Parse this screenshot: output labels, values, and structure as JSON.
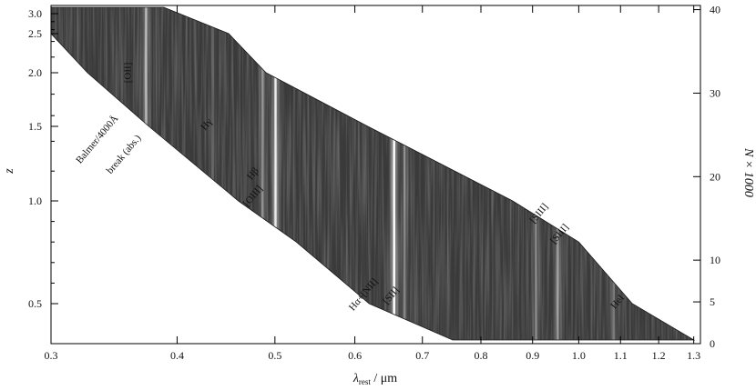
{
  "chart_data": {
    "type": "heatmap",
    "xlabel_main": "λ",
    "xlabel_sub": "rest",
    "xlabel_unit": " / μm",
    "ylabel_left": "z",
    "ylabel_right": "N × 1000",
    "x_scale": "log",
    "xlim": [
      0.3,
      1.32
    ],
    "x_ticks": [
      0.3,
      0.4,
      0.5,
      0.6,
      0.7,
      0.8,
      0.9,
      1.0,
      1.1,
      1.2,
      1.3
    ],
    "x_tick_labels": [
      "0.3",
      "0.4",
      "0.5",
      "0.6",
      "0.7",
      "0.8",
      "0.9",
      "1.0",
      "1.1",
      "1.2",
      "1.3"
    ],
    "z_ticks": [
      0.5,
      1.0,
      1.5,
      2.0,
      2.5,
      3.0
    ],
    "z_tick_labels": [
      "0.5",
      "1.0",
      "1.5",
      "2.0",
      "2.5",
      "3.0"
    ],
    "N_ticks": [
      0,
      5,
      10,
      20,
      30,
      40
    ],
    "N_tick_labels": [
      "0",
      "5",
      "10",
      "20",
      "30",
      "40"
    ],
    "N_range": [
      0,
      40.5
    ],
    "boundary": {
      "z": [
        3.05,
        2.5,
        2.0,
        1.5,
        1.0,
        0.8,
        0.5,
        0.4
      ],
      "lambda_min": [
        0.3,
        0.3,
        0.326,
        0.375,
        0.46,
        0.525,
        0.62,
        0.75
      ],
      "lambda_max": [
        0.388,
        0.45,
        0.49,
        0.618,
        0.86,
        1.0,
        1.13,
        1.3
      ]
    },
    "emission_lines": [
      {
        "label": "[OII]",
        "lambda": 0.3727,
        "strength": 0.55
      },
      {
        "label": "Hγ",
        "lambda": 0.434,
        "strength": 0.12
      },
      {
        "label": "Hβ",
        "lambda": 0.4861,
        "strength": 0.35
      },
      {
        "label": "[OIII]",
        "lambda": 0.5007,
        "strength": 0.85
      },
      {
        "label": "Hα+[NII]",
        "lambda": 0.6563,
        "strength": 1.0
      },
      {
        "label": "[SII]",
        "lambda": 0.672,
        "strength": 0.3
      },
      {
        "label": "[SIII]",
        "lambda": 0.9069,
        "strength": 0.3
      },
      {
        "label": "[SIII]",
        "lambda": 0.9532,
        "strength": 0.38
      },
      {
        "label": "HeI",
        "lambda": 1.083,
        "strength": 0.25
      }
    ],
    "annotations": [
      {
        "text": "[OII]",
        "lambda": 0.36,
        "z": 2.0,
        "angle": -90
      },
      {
        "text": "Balmer/4000Å",
        "lambda": 0.335,
        "z": 1.4,
        "angle": -50
      },
      {
        "text": "break (abs.)",
        "lambda": 0.356,
        "z": 1.3,
        "angle": -50
      },
      {
        "text": "Hγ",
        "lambda": 0.43,
        "z": 1.5,
        "angle": -50
      },
      {
        "text": "Hβ",
        "lambda": 0.478,
        "z": 1.17,
        "angle": -50
      },
      {
        "text": "[OIII]",
        "lambda": 0.478,
        "z": 1.02,
        "angle": -50
      },
      {
        "text": "Hα+[NII]",
        "lambda": 0.615,
        "z": 0.535,
        "angle": -50
      },
      {
        "text": "[SII]",
        "lambda": 0.655,
        "z": 0.53,
        "angle": -50
      },
      {
        "text": "[SIII]",
        "lambda": 0.918,
        "z": 0.93,
        "angle": -50
      },
      {
        "text": "[SIII]",
        "lambda": 0.962,
        "z": 0.83,
        "angle": -50
      },
      {
        "text": "HeI",
        "lambda": 1.098,
        "z": 0.5,
        "angle": -50
      }
    ]
  }
}
